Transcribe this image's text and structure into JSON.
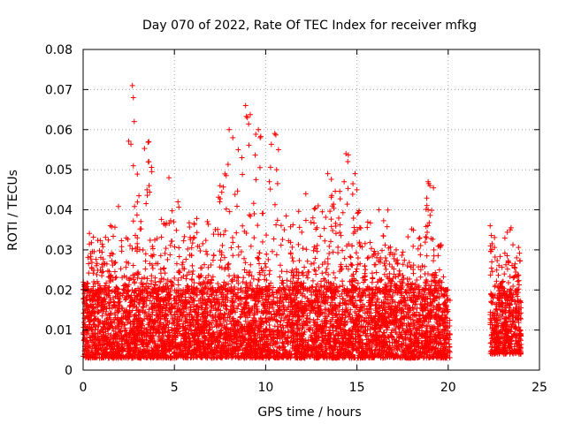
{
  "chart_data": {
    "type": "scatter",
    "title": "Day 070 of 2022, Rate Of TEC Index for receiver mfkg",
    "xlabel": "GPS time / hours",
    "ylabel": "ROTI / TECUs",
    "xlim": [
      0,
      25
    ],
    "ylim": [
      0,
      0.08
    ],
    "x_ticks": [
      0,
      5,
      10,
      15,
      20,
      25
    ],
    "x_tick_labels": [
      "0",
      "5",
      "10",
      "15",
      "20",
      "25"
    ],
    "y_ticks": [
      0,
      0.01,
      0.02,
      0.03,
      0.04,
      0.05,
      0.06,
      0.07,
      0.08
    ],
    "y_tick_labels": [
      "0",
      "0.01",
      "0.02",
      "0.03",
      "0.04",
      "0.05",
      "0.06",
      "0.07",
      "0.08"
    ],
    "grid": true,
    "marker": "+",
    "color": "#ff0000",
    "data_gap_hours": [
      20.1,
      22.3
    ],
    "series": [
      {
        "segments": [
          {
            "x_range": [
              0,
              20.1
            ],
            "y_range": [
              0.003,
              0.02
            ]
          },
          {
            "x_range": [
              22.3,
              24
            ],
            "y_range": [
              0.004,
              0.019
            ]
          }
        ],
        "envelope": [
          [
            0.0,
            0.022
          ],
          [
            0.5,
            0.036
          ],
          [
            1.0,
            0.034
          ],
          [
            1.5,
            0.037
          ],
          [
            1.8,
            0.044
          ],
          [
            2.2,
            0.033
          ],
          [
            2.7,
            0.071
          ],
          [
            3.0,
            0.05
          ],
          [
            3.6,
            0.057
          ],
          [
            4.0,
            0.034
          ],
          [
            4.5,
            0.038
          ],
          [
            5.0,
            0.042
          ],
          [
            5.5,
            0.035
          ],
          [
            6.0,
            0.038
          ],
          [
            6.5,
            0.033
          ],
          [
            7.0,
            0.038
          ],
          [
            7.5,
            0.046
          ],
          [
            8.0,
            0.06
          ],
          [
            8.5,
            0.055
          ],
          [
            8.9,
            0.066
          ],
          [
            9.5,
            0.06
          ],
          [
            10.0,
            0.04
          ],
          [
            10.5,
            0.059
          ],
          [
            11.0,
            0.043
          ],
          [
            11.5,
            0.037
          ],
          [
            12.0,
            0.04
          ],
          [
            12.5,
            0.044
          ],
          [
            13.0,
            0.043
          ],
          [
            13.5,
            0.049
          ],
          [
            14.0,
            0.045
          ],
          [
            14.5,
            0.054
          ],
          [
            15.0,
            0.05
          ],
          [
            15.5,
            0.039
          ],
          [
            16.0,
            0.034
          ],
          [
            16.5,
            0.04
          ],
          [
            17.0,
            0.032
          ],
          [
            17.5,
            0.031
          ],
          [
            18.0,
            0.036
          ],
          [
            18.5,
            0.034
          ],
          [
            19.0,
            0.048
          ],
          [
            19.5,
            0.035
          ],
          [
            20.0,
            0.02
          ],
          [
            22.3,
            0.036
          ],
          [
            22.8,
            0.029
          ],
          [
            23.3,
            0.036
          ],
          [
            23.8,
            0.033
          ]
        ],
        "spikes": [
          [
            2.7,
            0.071
          ],
          [
            2.75,
            0.068
          ],
          [
            2.8,
            0.062
          ],
          [
            2.75,
            0.051
          ],
          [
            3.6,
            0.057
          ],
          [
            3.6,
            0.052
          ],
          [
            3.5,
            0.045
          ],
          [
            4.7,
            0.048
          ],
          [
            7.5,
            0.046
          ],
          [
            8.0,
            0.06
          ],
          [
            8.2,
            0.058
          ],
          [
            8.5,
            0.055
          ],
          [
            8.7,
            0.053
          ],
          [
            8.9,
            0.066
          ],
          [
            9.0,
            0.063
          ],
          [
            9.6,
            0.06
          ],
          [
            9.7,
            0.058
          ],
          [
            10.5,
            0.059
          ],
          [
            10.7,
            0.055
          ],
          [
            10.6,
            0.05
          ],
          [
            10.2,
            0.047
          ],
          [
            12.2,
            0.044
          ],
          [
            13.4,
            0.049
          ],
          [
            14.4,
            0.054
          ],
          [
            14.5,
            0.052
          ],
          [
            14.3,
            0.047
          ],
          [
            14.9,
            0.049
          ],
          [
            15.0,
            0.045
          ],
          [
            16.2,
            0.04
          ],
          [
            18.9,
            0.047
          ],
          [
            19.0,
            0.046
          ],
          [
            18.9,
            0.04
          ],
          [
            22.3,
            0.036
          ],
          [
            23.4,
            0.035
          ]
        ]
      }
    ]
  }
}
